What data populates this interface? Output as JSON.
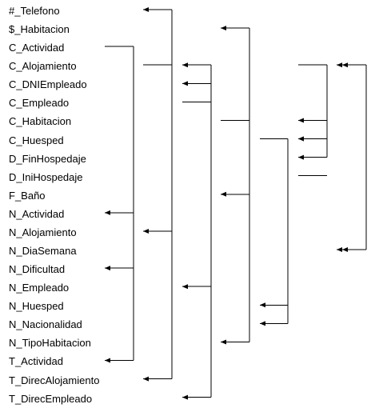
{
  "attributes": [
    "#_Telefono",
    "$_Habitacion",
    "C_Actividad",
    "C_Alojamiento",
    "C_DNIEmpleado",
    "C_Empleado",
    "C_Habitacion",
    "C_Huesped",
    "D_FinHospedaje",
    "D_IniHospedaje",
    "F_Baño",
    "N_Actividad",
    "N_Alojamiento",
    "N_DiaSemana",
    "N_Dificultad",
    "N_Empleado",
    "N_Huesped",
    "N_Nacionalidad",
    "N_TipoHabitacion",
    "T_Actividad",
    "T_DirecAlojamiento",
    "T_DirecEmpleado"
  ],
  "dependencies": [
    {
      "determinant": "C_Actividad",
      "dependents": [
        "N_Actividad",
        "N_Dificultad",
        "T_Actividad"
      ]
    },
    {
      "determinant": "C_Alojamiento",
      "dependents": [
        "#_Telefono",
        "N_Alojamiento",
        "T_DirecAlojamiento"
      ]
    },
    {
      "determinant": "C_Empleado",
      "dependents": [
        "C_Alojamiento",
        "C_DNIEmpleado",
        "N_Empleado",
        "T_DirecEmpleado"
      ]
    },
    {
      "determinant": "C_Habitacion",
      "dependents": [
        "$_Habitacion",
        "F_Baño",
        "N_TipoHabitacion"
      ]
    },
    {
      "determinant": "C_Huesped",
      "dependents": [
        "N_Huesped",
        "N_Nacionalidad"
      ]
    },
    {
      "determinant": "C_Alojamiento",
      "dependents": [
        "C_Habitacion",
        "C_Huesped",
        "D_FinHospedaje"
      ]
    },
    {
      "determinant": "D_IniHospedaje",
      "dependents": [
        "C_Huesped"
      ]
    },
    {
      "determinant": "C_Alojamiento",
      "dependents": [
        "C_Alojamiento",
        "N_DiaSemana"
      ]
    }
  ],
  "style": {
    "line_color": "#000000",
    "text_color": "#000000"
  }
}
